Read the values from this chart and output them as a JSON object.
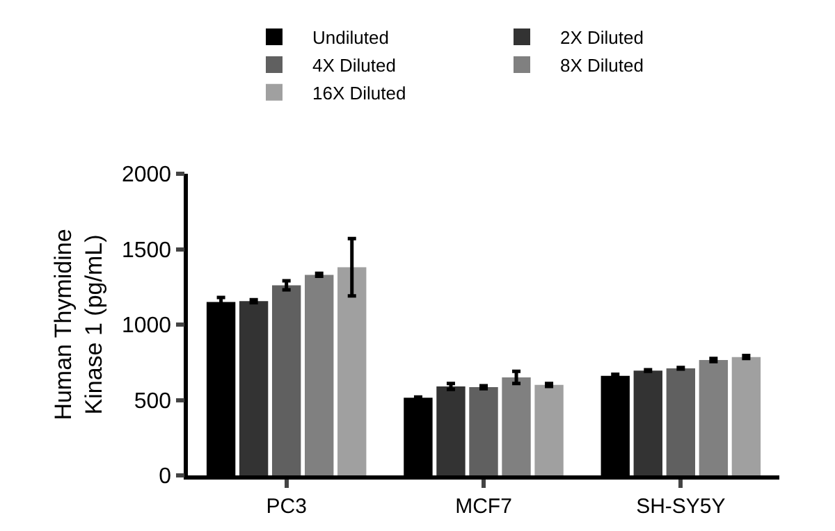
{
  "chart_data": {
    "type": "bar",
    "ylabel": "Human Thymidine\nKinase 1 (pg/mL)",
    "categories": [
      "PC3",
      "MCF7",
      "SH-SY5Y"
    ],
    "series": [
      {
        "name": "Undiluted",
        "color": "#000000",
        "values": [
          1150,
          515,
          660
        ],
        "errors": [
          30,
          5,
          10
        ]
      },
      {
        "name": "2X Diluted",
        "color": "#333333",
        "values": [
          1155,
          590,
          695
        ],
        "errors": [
          10,
          20,
          5
        ]
      },
      {
        "name": "4X Diluted",
        "color": "#606060",
        "values": [
          1260,
          585,
          710
        ],
        "errors": [
          30,
          10,
          5
        ]
      },
      {
        "name": "8X Diluted",
        "color": "#808080",
        "values": [
          1330,
          650,
          765
        ],
        "errors": [
          10,
          40,
          10
        ]
      },
      {
        "name": "16X Diluted",
        "color": "#a0a0a0",
        "values": [
          1380,
          600,
          785
        ],
        "errors": [
          190,
          10,
          10
        ]
      }
    ],
    "ylim": [
      0,
      2000
    ],
    "yticks": [
      0,
      500,
      1000,
      1500,
      2000
    ],
    "legend": "top"
  }
}
